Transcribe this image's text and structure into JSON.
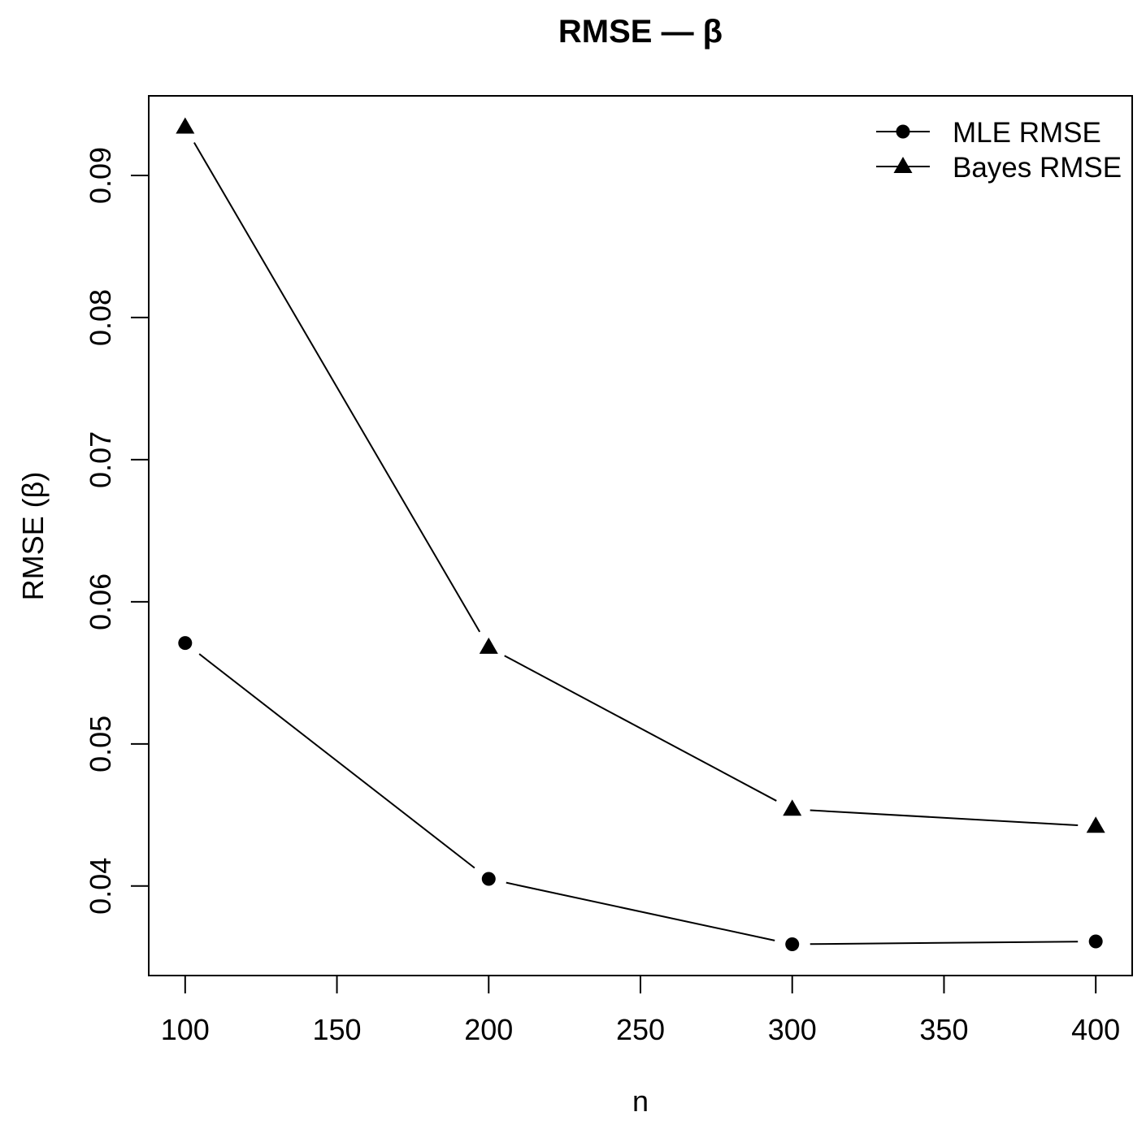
{
  "title": "RMSE — β",
  "chart_data": {
    "type": "line",
    "title": "RMSE — β",
    "xlabel": "n",
    "ylabel": "RMSE (β)",
    "x": [
      100,
      200,
      300,
      400
    ],
    "series": [
      {
        "name": "MLE RMSE",
        "marker": "circle",
        "values": [
          0.0571,
          0.0405,
          0.0359,
          0.0361
        ]
      },
      {
        "name": "Bayes RMSE",
        "marker": "triangle",
        "values": [
          0.0934,
          0.0568,
          0.0454,
          0.0442
        ]
      }
    ],
    "x_ticks": [
      100,
      150,
      200,
      250,
      300,
      350,
      400
    ],
    "x_tick_labels": [
      "100",
      "150",
      "200",
      "250",
      "300",
      "350",
      "400"
    ],
    "y_ticks": [
      0.04,
      0.05,
      0.06,
      0.07,
      0.08,
      0.09
    ],
    "y_tick_labels": [
      "0.04",
      "0.05",
      "0.06",
      "0.07",
      "0.08",
      "0.09"
    ],
    "xlim": [
      88,
      412
    ],
    "ylim": [
      0.0337,
      0.0956
    ],
    "grid": false,
    "point_line_style": "both-with-gaps",
    "legend": {
      "position": "topright",
      "box": false,
      "items": [
        {
          "label": "MLE RMSE",
          "marker": "circle"
        },
        {
          "label": "Bayes RMSE",
          "marker": "triangle"
        }
      ]
    },
    "colors": {
      "foreground": "#000000",
      "background": "#ffffff"
    }
  }
}
